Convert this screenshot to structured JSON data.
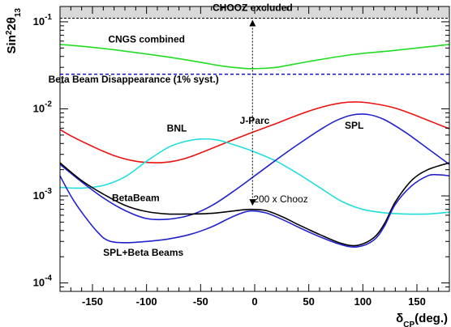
{
  "chart_data": {
    "type": "line",
    "x_scale": "linear",
    "y_scale": "log",
    "xlim": [
      -180,
      180
    ],
    "ylim": [
      8e-05,
      0.15
    ],
    "x_ticks": [
      -150,
      -100,
      -50,
      0,
      50,
      100,
      150
    ],
    "x_tick_labels": [
      "-150",
      "-100",
      "-50",
      "0",
      "50",
      "100",
      "150"
    ],
    "y_ticks": [
      {
        "value": 0.0001,
        "mantissa": "10",
        "exp": "-4"
      },
      {
        "value": 0.001,
        "mantissa": "10",
        "exp": "-3"
      },
      {
        "value": 0.01,
        "mantissa": "10",
        "exp": "-2"
      },
      {
        "value": 0.1,
        "mantissa": "10",
        "exp": "-1"
      }
    ],
    "xlabel": {
      "main": "δ",
      "sub": "CP",
      "suffix": "(deg.)"
    },
    "ylabel": {
      "main": "Sin",
      "sup": "2",
      "mid": "2θ",
      "sub": "13"
    },
    "grid": false,
    "excluded_region": {
      "label": "CHOOZ excluded",
      "y_from": 0.11,
      "color": "#d9d9d9"
    },
    "horizontal_lines": [
      {
        "label": "Beta Beam Disappearance (1% syst.)",
        "y": 0.025,
        "color": "#0000cc",
        "style": "dashed"
      }
    ],
    "arrow": {
      "x": -2,
      "y_from": 0.11,
      "y_to": 0.00074,
      "label_top": "J-Parc",
      "label_bottom": "200 x Chooz"
    },
    "series": [
      {
        "name": "CNGS combined",
        "color": "#22dd22",
        "x": [
          -180,
          -150,
          -120,
          -90,
          -60,
          -30,
          -10,
          0,
          20,
          50,
          90,
          130,
          180
        ],
        "y": [
          0.055,
          0.051,
          0.046,
          0.041,
          0.036,
          0.031,
          0.0292,
          0.029,
          0.03,
          0.035,
          0.042,
          0.047,
          0.055
        ]
      },
      {
        "name": "J-Parc",
        "color": "#ee1111",
        "x": [
          -180,
          -170,
          -150,
          -130,
          -110,
          -90,
          -75,
          -60,
          -40,
          -20,
          0,
          20,
          40,
          60,
          80,
          95,
          110,
          130,
          150,
          170,
          180
        ],
        "y": [
          0.0058,
          0.0049,
          0.0037,
          0.0029,
          0.0025,
          0.0024,
          0.0025,
          0.0028,
          0.0035,
          0.0044,
          0.0055,
          0.0068,
          0.0085,
          0.0103,
          0.0117,
          0.012,
          0.0115,
          0.0102,
          0.0083,
          0.0066,
          0.0059
        ]
      },
      {
        "name": "BNL",
        "color": "#22dddd",
        "x": [
          -180,
          -160,
          -140,
          -120,
          -100,
          -80,
          -65,
          -50,
          -35,
          -20,
          0,
          20,
          40,
          60,
          80,
          100,
          120,
          140,
          160,
          180
        ],
        "y": [
          0.00125,
          0.00123,
          0.00132,
          0.00165,
          0.0025,
          0.0036,
          0.0042,
          0.0045,
          0.0044,
          0.0039,
          0.0032,
          0.0025,
          0.0018,
          0.00125,
          0.00087,
          0.0007,
          0.00064,
          0.00062,
          0.00062,
          0.00065
        ]
      },
      {
        "name": "SPL",
        "color": "#2222cc",
        "x": [
          -180,
          -160,
          -140,
          -120,
          -100,
          -80,
          -60,
          -40,
          -20,
          0,
          20,
          40,
          60,
          75,
          90,
          105,
          120,
          140,
          160,
          180
        ],
        "y": [
          0.0023,
          0.00145,
          0.00095,
          0.00068,
          0.00055,
          0.00054,
          0.0006,
          0.00077,
          0.00112,
          0.0017,
          0.0026,
          0.0039,
          0.0057,
          0.0073,
          0.0085,
          0.0086,
          0.0075,
          0.0053,
          0.0035,
          0.0023
        ]
      },
      {
        "name": "BetaBeam",
        "color": "#000000",
        "x": [
          -180,
          -160,
          -140,
          -120,
          -100,
          -80,
          -60,
          -40,
          -20,
          -5,
          10,
          25,
          40,
          60,
          80,
          95,
          110,
          120,
          130,
          145,
          160,
          180
        ],
        "y": [
          0.0024,
          0.0015,
          0.00105,
          0.00078,
          0.00066,
          0.00062,
          0.00062,
          0.00063,
          0.00067,
          0.0007,
          0.00068,
          0.00058,
          0.00047,
          0.00036,
          0.000285,
          0.00027,
          0.00033,
          0.00048,
          0.00085,
          0.0015,
          0.002,
          0.0024
        ]
      },
      {
        "name": "SPL+Beta Beams",
        "color": "#2222cc",
        "x": [
          -180,
          -170,
          -160,
          -145,
          -135,
          -120,
          -100,
          -80,
          -60,
          -40,
          -20,
          -5,
          10,
          25,
          40,
          60,
          80,
          95,
          110,
          120,
          130,
          145,
          160,
          170,
          180
        ],
        "y": [
          0.0017,
          0.001,
          0.00065,
          0.00038,
          0.000305,
          0.00029,
          0.0003,
          0.00032,
          0.00036,
          0.00044,
          0.00058,
          0.00067,
          0.00064,
          0.00054,
          0.00044,
          0.00034,
          0.000275,
          0.00026,
          0.00031,
          0.00045,
          0.0008,
          0.0013,
          0.0017,
          0.00175,
          0.0017
        ]
      }
    ],
    "labels": [
      {
        "text": "CHOOZ excluded",
        "x": -2,
        "y": 0.134
      },
      {
        "text": "CNGS combined",
        "x": -100,
        "y": 0.058
      },
      {
        "text": "Beta Beam Disappearance (1% syst.)",
        "x": -112,
        "y": 0.02
      },
      {
        "text": "J-Parc",
        "x": 0,
        "y": 0.0067
      },
      {
        "text": "BNL",
        "x": -72,
        "y": 0.0055
      },
      {
        "text": "SPL",
        "x": 92,
        "y": 0.0059
      },
      {
        "text": "BetaBeam",
        "x": -110,
        "y": 0.00087
      },
      {
        "text": "SPL+Beta Beams",
        "x": -103,
        "y": 0.000205
      }
    ]
  }
}
